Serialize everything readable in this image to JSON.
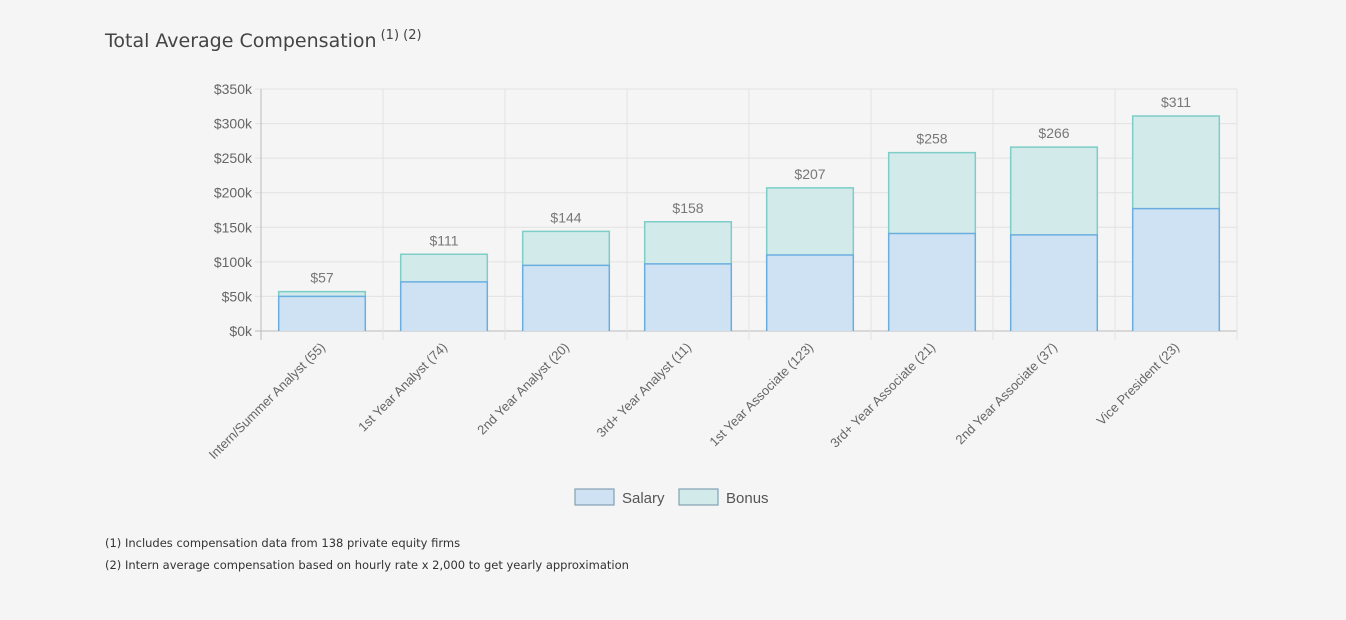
{
  "title": {
    "text": "Total Average Compensation",
    "superscript": "(1) (2)"
  },
  "footnotes": [
    "(1) Includes compensation data from 138 private equity firms",
    "(2) Intern average compensation based on hourly rate x 2,000 to get yearly approximation"
  ],
  "chart_data": {
    "type": "bar",
    "stacked": true,
    "title": "Total Average Compensation",
    "categories": [
      "Intern/Summer Analyst (55)",
      "1st Year Analyst (74)",
      "2nd Year Analyst (20)",
      "3rd+ Year Analyst (11)",
      "1st Year Associate (123)",
      "3rd+ Year Associate (21)",
      "2nd Year Associate (37)",
      "Vice President (23)"
    ],
    "series": [
      {
        "name": "Salary",
        "values": [
          50,
          71,
          95,
          97,
          110,
          141,
          139,
          177
        ],
        "color": "#cfe2f3",
        "border": "#6aaee0"
      },
      {
        "name": "Bonus",
        "values": [
          7,
          40,
          49,
          61,
          97,
          117,
          127,
          134
        ],
        "color": "#d2eae9",
        "border": "#7ecdc6"
      }
    ],
    "total_labels": [
      "$57",
      "$111",
      "$144",
      "$158",
      "$207",
      "$258",
      "$266",
      "$311"
    ],
    "ylim": [
      0,
      350
    ],
    "ytick_values": [
      0,
      50,
      100,
      150,
      200,
      250,
      300,
      350
    ],
    "ytick_labels": [
      "$0k",
      "$50k",
      "$100k",
      "$150k",
      "$200k",
      "$250k",
      "$300k",
      "$350k"
    ],
    "xlabel": "",
    "ylabel": "",
    "grid": true,
    "legend": "bottom"
  }
}
